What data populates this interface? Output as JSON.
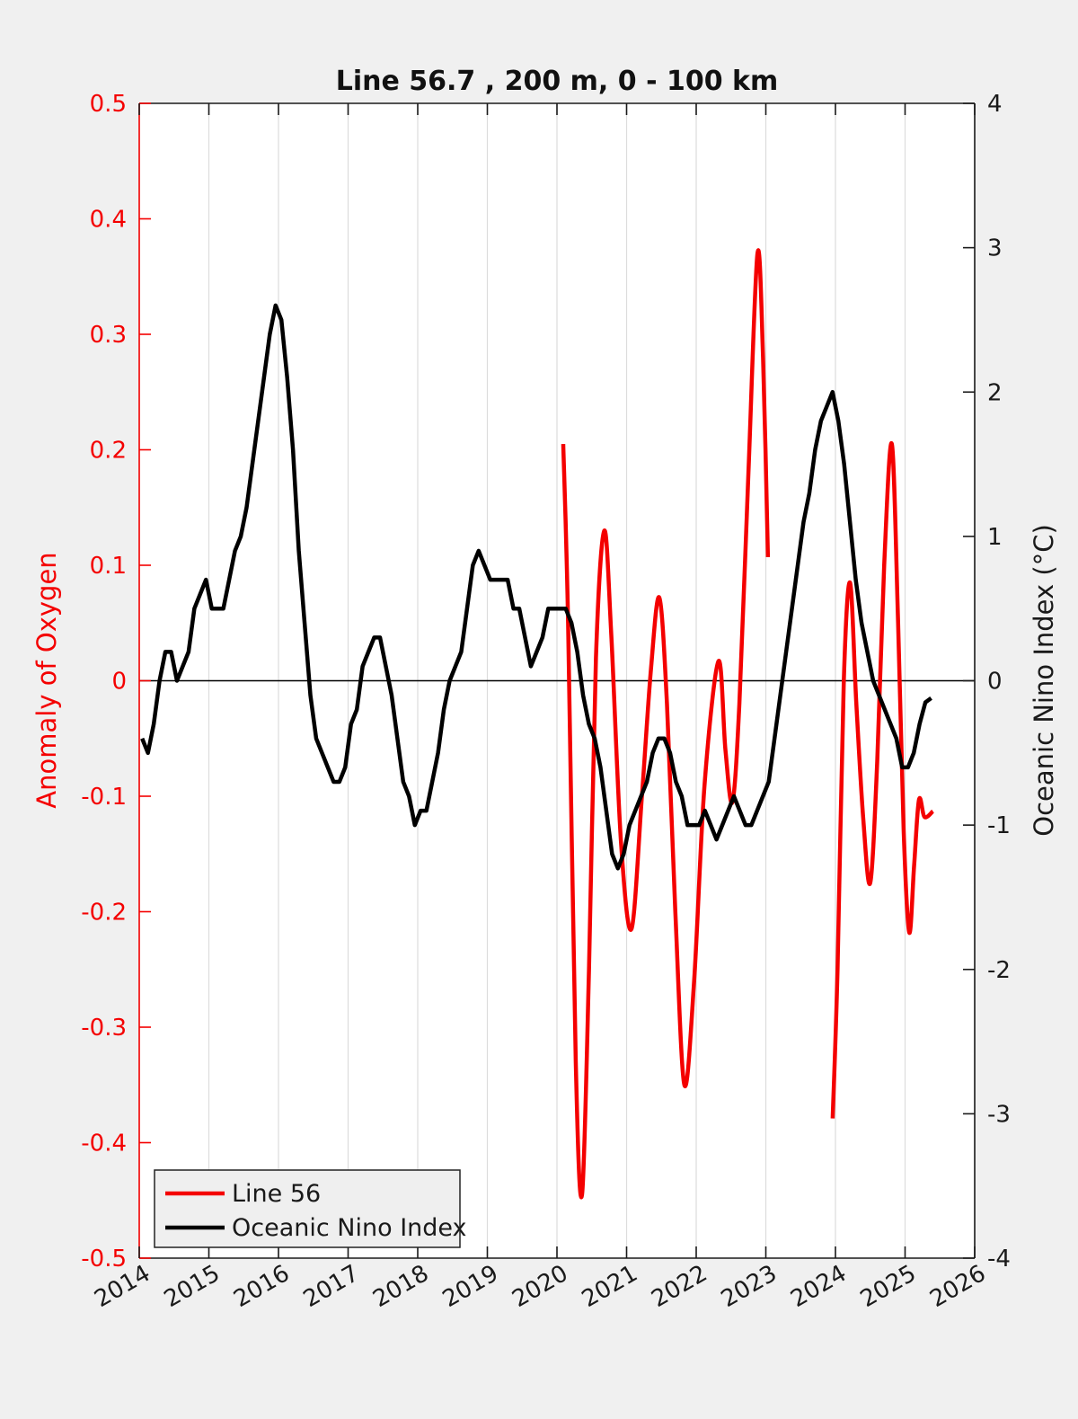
{
  "title": "Line 56.7 , 200 m, 0 - 100 km",
  "legend": {
    "entry1": "Line 56",
    "entry2": "Oceanic Nino Index"
  },
  "chart_data": {
    "type": "line",
    "title": "Line 56.7 , 200 m, 0 - 100 km",
    "x_axis": {
      "min": 2014,
      "max": 2026,
      "grid": true,
      "tick_values": [
        2014,
        2015,
        2016,
        2017,
        2018,
        2019,
        2020,
        2021,
        2022,
        2023,
        2024,
        2025,
        2026
      ],
      "tick_labels": [
        "2014",
        "2015",
        "2016",
        "2017",
        "2018",
        "2019",
        "2020",
        "2021",
        "2022",
        "2023",
        "2024",
        "2025",
        "2026"
      ],
      "tick_label_rotation_deg": -30
    },
    "left_y_axis": {
      "label": "Anomaly of Oxygen",
      "color": "#f40000",
      "min": -0.5,
      "max": 0.5,
      "tick_values": [
        0.5,
        0.4,
        0.3,
        0.2,
        0.1,
        0,
        -0.1,
        -0.2,
        -0.3,
        -0.4,
        -0.5
      ],
      "tick_labels": [
        "0.5",
        "0.4",
        "0.3",
        "0.2",
        "0.1",
        "0",
        "-0.1",
        "-0.2",
        "-0.3",
        "-0.4",
        "-0.5"
      ]
    },
    "right_y_axis": {
      "label": "Oceanic Nino Index (°C)",
      "color": "#1a1a1a",
      "min": -4,
      "max": 4,
      "tick_values": [
        4,
        3,
        2,
        1,
        0,
        -1,
        -2,
        -3,
        -4
      ],
      "tick_labels": [
        "4",
        "3",
        "2",
        "1",
        "0",
        "-1",
        "-2",
        "-3",
        "-4"
      ]
    },
    "zero_line": true,
    "legend": {
      "position": "bottom-left",
      "entries": [
        "Line 56",
        "Oceanic Nino Index"
      ]
    },
    "series": [
      {
        "name": "Line 56",
        "axis": "left",
        "color": "#f40000",
        "line_width": 4.5,
        "smooth": true,
        "segments": [
          {
            "x": [
              2020.09,
              2020.16,
              2020.27,
              2020.36,
              2020.46,
              2020.56,
              2020.68,
              2020.78,
              2020.92,
              2021.07,
              2021.22,
              2021.35,
              2021.47,
              2021.58,
              2021.7,
              2021.83,
              2021.97,
              2022.12,
              2022.32,
              2022.42,
              2022.52,
              2022.62,
              2022.75,
              2022.88,
              2022.96,
              2023.03
            ],
            "y": [
              0.205,
              0.05,
              -0.33,
              -0.445,
              -0.25,
              0.02,
              0.13,
              0.04,
              -0.14,
              -0.215,
              -0.1,
              0.01,
              0.072,
              -0.02,
              -0.2,
              -0.35,
              -0.26,
              -0.09,
              0.017,
              -0.06,
              -0.105,
              -0.02,
              0.18,
              0.37,
              0.28,
              0.107
            ]
          },
          {
            "x": [
              2023.96,
              2024.03,
              2024.12,
              2024.21,
              2024.3,
              2024.4,
              2024.5,
              2024.6,
              2024.7,
              2024.81,
              2024.9,
              2024.98,
              2025.06,
              2025.13,
              2025.2,
              2025.28,
              2025.4
            ],
            "y": [
              -0.379,
              -0.25,
              0.0,
              0.085,
              -0.02,
              -0.12,
              -0.175,
              -0.07,
              0.1,
              0.205,
              0.05,
              -0.13,
              -0.218,
              -0.16,
              -0.103,
              -0.118,
              -0.113
            ]
          }
        ]
      },
      {
        "name": "Oceanic Nino Index",
        "axis": "right",
        "color": "#000000",
        "line_width": 4.5,
        "smooth": false,
        "x_start": 2014.0417,
        "x_step": 0.0833333,
        "y": [
          -0.4,
          -0.5,
          -0.3,
          0.0,
          0.2,
          0.2,
          0.0,
          0.1,
          0.2,
          0.5,
          0.6,
          0.7,
          0.5,
          0.5,
          0.5,
          0.7,
          0.9,
          1.0,
          1.2,
          1.5,
          1.8,
          2.1,
          2.4,
          2.6,
          2.5,
          2.1,
          1.6,
          0.9,
          0.4,
          -0.1,
          -0.4,
          -0.5,
          -0.6,
          -0.7,
          -0.7,
          -0.6,
          -0.3,
          -0.2,
          0.1,
          0.2,
          0.3,
          0.3,
          0.1,
          -0.1,
          -0.4,
          -0.7,
          -0.8,
          -1.0,
          -0.9,
          -0.9,
          -0.7,
          -0.5,
          -0.2,
          0.0,
          0.1,
          0.2,
          0.5,
          0.8,
          0.9,
          0.8,
          0.7,
          0.7,
          0.7,
          0.7,
          0.5,
          0.5,
          0.3,
          0.1,
          0.2,
          0.3,
          0.5,
          0.5,
          0.5,
          0.5,
          0.4,
          0.2,
          -0.1,
          -0.3,
          -0.4,
          -0.6,
          -0.9,
          -1.2,
          -1.3,
          -1.2,
          -1.0,
          -0.9,
          -0.8,
          -0.7,
          -0.5,
          -0.4,
          -0.4,
          -0.5,
          -0.7,
          -0.8,
          -1.0,
          -1.0,
          -1.0,
          -0.9,
          -1.0,
          -1.1,
          -1.0,
          -0.9,
          -0.8,
          -0.9,
          -1.0,
          -1.0,
          -0.9,
          -0.8,
          -0.7,
          -0.4,
          -0.1,
          0.2,
          0.5,
          0.8,
          1.1,
          1.3,
          1.6,
          1.8,
          1.9,
          2.0,
          1.8,
          1.5,
          1.1,
          0.7,
          0.4,
          0.2,
          0.0,
          -0.1,
          -0.2,
          -0.3,
          -0.4,
          -0.6,
          -0.6,
          -0.5,
          -0.3,
          -0.15,
          -0.12
        ]
      }
    ],
    "plot_background": "#ffffff",
    "figure_background": "#f0f0f0",
    "grid_color": "#dcdcdc"
  }
}
